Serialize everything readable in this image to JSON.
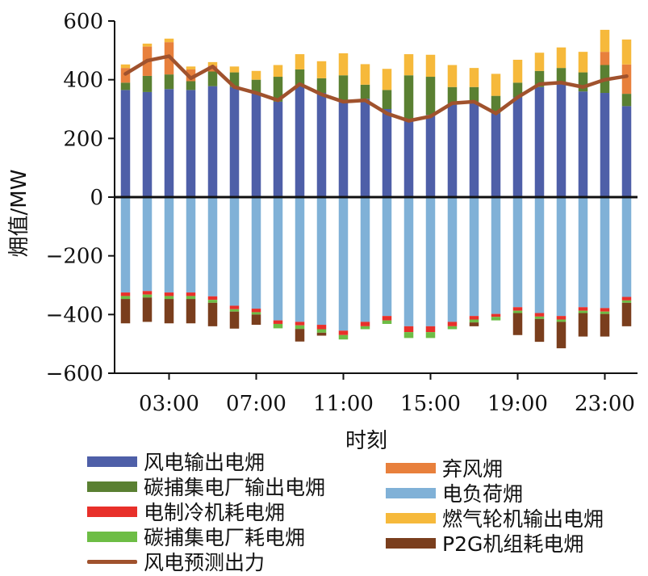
{
  "chart_data": {
    "type": "bar",
    "stacked": true,
    "xlabel": "时刻",
    "ylabel": "㶲值/MW",
    "ylim": [
      -600,
      600
    ],
    "yticks": [
      600,
      400,
      200,
      0,
      -200,
      -400,
      -600
    ],
    "yticklabels": [
      "600",
      "400",
      "200",
      "0",
      "−200",
      "−400",
      "−600"
    ],
    "x": [
      1,
      2,
      3,
      4,
      5,
      6,
      7,
      8,
      9,
      10,
      11,
      12,
      13,
      14,
      15,
      16,
      17,
      18,
      19,
      20,
      21,
      22,
      23,
      24
    ],
    "xticks": [
      3,
      7,
      11,
      15,
      19,
      23
    ],
    "xticklabels": [
      "03:00",
      "07:00",
      "11:00",
      "15:00",
      "19:00",
      "23:00"
    ],
    "series": [
      {
        "name": "风电输出电㶲",
        "color": "#4e5fa8",
        "stack": "positive",
        "values": [
          365,
          358,
          368,
          365,
          378,
          375,
          355,
          325,
          380,
          355,
          330,
          335,
          300,
          260,
          280,
          315,
          325,
          285,
          340,
          375,
          385,
          360,
          355,
          310
        ]
      },
      {
        "name": "碳捕集电厂输出电㶲",
        "color": "#5a8032",
        "stack": "positive",
        "values": [
          25,
          55,
          50,
          30,
          50,
          50,
          45,
          85,
          55,
          50,
          85,
          48,
          65,
          155,
          130,
          60,
          50,
          60,
          50,
          55,
          55,
          65,
          95,
          42
        ]
      },
      {
        "name": "弃风㶲",
        "color": "#e8803c",
        "stack": "positive",
        "values": [
          50,
          100,
          110,
          40,
          20,
          0,
          0,
          0,
          0,
          0,
          0,
          0,
          0,
          0,
          0,
          0,
          0,
          0,
          0,
          0,
          0,
          0,
          45,
          100
        ]
      },
      {
        "name": "燃气轮机输出电㶲",
        "color": "#f6b93b",
        "stack": "positive",
        "values": [
          12,
          10,
          12,
          10,
          12,
          20,
          30,
          40,
          52,
          58,
          75,
          70,
          72,
          72,
          75,
          75,
          65,
          75,
          78,
          62,
          70,
          70,
          75,
          85
        ]
      },
      {
        "name": "电负荷㶲",
        "color": "#80b1d7",
        "stack": "negative",
        "values": [
          -325,
          -320,
          -325,
          -325,
          -338,
          -370,
          -380,
          -420,
          -425,
          -435,
          -455,
          -425,
          -405,
          -440,
          -440,
          -425,
          -405,
          -398,
          -375,
          -395,
          -405,
          -375,
          -378,
          -340
        ]
      },
      {
        "name": "电制冷机耗电㶲",
        "color": "#e8302a",
        "stack": "negative",
        "values": [
          -12,
          -12,
          -12,
          -12,
          -12,
          -12,
          -12,
          -12,
          -12,
          -15,
          -15,
          -15,
          -15,
          -20,
          -20,
          -15,
          -12,
          -10,
          -12,
          -12,
          -12,
          -12,
          -12,
          -12
        ]
      },
      {
        "name": "碳捕集电厂耗电㶲",
        "color": "#6dbd45",
        "stack": "negative",
        "values": [
          -10,
          -10,
          -10,
          -10,
          -10,
          -8,
          -8,
          -15,
          -12,
          -12,
          -15,
          -10,
          -12,
          -20,
          -20,
          -10,
          -10,
          -12,
          -8,
          -8,
          -8,
          -8,
          -8,
          -8
        ]
      },
      {
        "name": "P2G机组耗电㶲",
        "color": "#7a3e1d",
        "stack": "negative",
        "values": [
          -83,
          -83,
          -83,
          -83,
          -80,
          -58,
          -35,
          0,
          -43,
          -10,
          0,
          0,
          0,
          0,
          0,
          0,
          -13,
          0,
          -75,
          -78,
          -90,
          -80,
          -77,
          -80
        ]
      }
    ],
    "line_series": {
      "name": "风电预测出力",
      "color": "#a0522d",
      "values": [
        420,
        465,
        480,
        405,
        445,
        375,
        355,
        330,
        385,
        350,
        325,
        330,
        285,
        260,
        275,
        320,
        325,
        285,
        340,
        385,
        390,
        375,
        400,
        412
      ]
    },
    "legend": {
      "position": "bottom",
      "items": [
        {
          "label": "风电输出电㶲",
          "color": "#4e5fa8",
          "kind": "bar"
        },
        {
          "label": "弃风㶲",
          "color": "#e8803c",
          "kind": "bar"
        },
        {
          "label": "碳捕集电厂输出电㶲",
          "color": "#5a8032",
          "kind": "bar"
        },
        {
          "label": "电负荷㶲",
          "color": "#80b1d7",
          "kind": "bar"
        },
        {
          "label": "电制冷机耗电㶲",
          "color": "#e8302a",
          "kind": "bar"
        },
        {
          "label": "燃气轮机输出电㶲",
          "color": "#f6b93b",
          "kind": "bar"
        },
        {
          "label": "碳捕集电厂耗电㶲",
          "color": "#6dbd45",
          "kind": "bar"
        },
        {
          "label": "P2G机组耗电㶲",
          "color": "#7a3e1d",
          "kind": "bar"
        },
        {
          "label": "风电预测出力",
          "color": "#a0522d",
          "kind": "line"
        }
      ]
    }
  }
}
